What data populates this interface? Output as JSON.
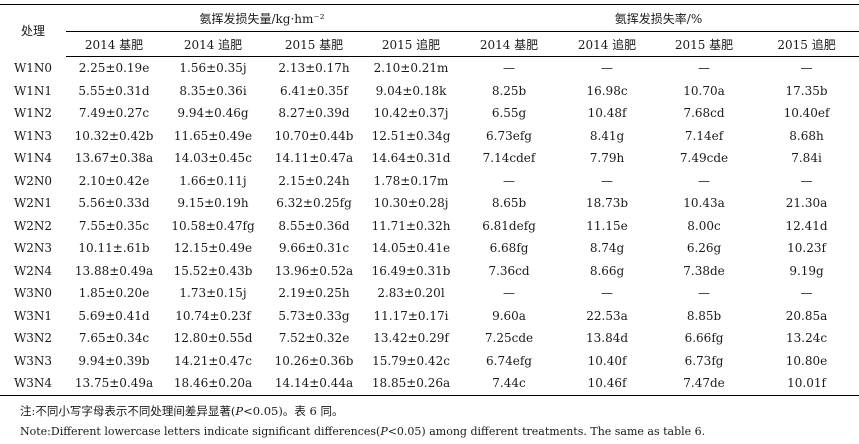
{
  "table": {
    "treatment_header": "处理",
    "group_headers": [
      "氨挥发损失量/kg·hm⁻²",
      "氨挥发损失率/%"
    ],
    "sub_headers": [
      "2014 基肥",
      "2014 追肥",
      "2015 基肥",
      "2015 追肥",
      "2014 基肥",
      "2014 追肥",
      "2015 基肥",
      "2015 追肥"
    ],
    "rows": [
      {
        "label": "W1N0",
        "cells": [
          "2.25±0.19e",
          "1.56±0.35j",
          "2.13±0.17h",
          "2.10±0.21m",
          "—",
          "—",
          "—",
          "—"
        ]
      },
      {
        "label": "W1N1",
        "cells": [
          "5.55±0.31d",
          "8.35±0.36i",
          "6.41±0.35f",
          "9.04±0.18k",
          "8.25b",
          "16.98c",
          "10.70a",
          "17.35b"
        ]
      },
      {
        "label": "W1N2",
        "cells": [
          "7.49±0.27c",
          "9.94±0.46g",
          "8.27±0.39d",
          "10.42±0.37j",
          "6.55g",
          "10.48f",
          "7.68cd",
          "10.40ef"
        ]
      },
      {
        "label": "W1N3",
        "cells": [
          "10.32±0.42b",
          "11.65±0.49e",
          "10.70±0.44b",
          "12.51±0.34g",
          "6.73efg",
          "8.41g",
          "7.14ef",
          "8.68h"
        ]
      },
      {
        "label": "W1N4",
        "cells": [
          "13.67±0.38a",
          "14.03±0.45c",
          "14.11±0.47a",
          "14.64±0.31d",
          "7.14cdef",
          "7.79h",
          "7.49cde",
          "7.84i"
        ]
      },
      {
        "label": "W2N0",
        "cells": [
          "2.10±0.42e",
          "1.66±0.11j",
          "2.15±0.24h",
          "1.78±0.17m",
          "—",
          "—",
          "—",
          "—"
        ]
      },
      {
        "label": "W2N1",
        "cells": [
          "5.56±0.33d",
          "9.15±0.19h",
          "6.32±0.25fg",
          "10.30±0.28j",
          "8.65b",
          "18.73b",
          "10.43a",
          "21.30a"
        ]
      },
      {
        "label": "W2N2",
        "cells": [
          "7.55±0.35c",
          "10.58±0.47fg",
          "8.55±0.36d",
          "11.71±0.32h",
          "6.81defg",
          "11.15e",
          "8.00c",
          "12.41d"
        ]
      },
      {
        "label": "W2N3",
        "cells": [
          "10.11±.61b",
          "12.15±0.49e",
          "9.66±0.31c",
          "14.05±0.41e",
          "6.68fg",
          "8.74g",
          "6.26g",
          "10.23f"
        ]
      },
      {
        "label": "W2N4",
        "cells": [
          "13.88±0.49a",
          "15.52±0.43b",
          "13.96±0.52a",
          "16.49±0.31b",
          "7.36cd",
          "8.66g",
          "7.38de",
          "9.19g"
        ]
      },
      {
        "label": "W3N0",
        "cells": [
          "1.85±0.20e",
          "1.73±0.15j",
          "2.19±0.25h",
          "2.83±0.20l",
          "—",
          "—",
          "—",
          "—"
        ]
      },
      {
        "label": "W3N1",
        "cells": [
          "5.69±0.41d",
          "10.74±0.23f",
          "5.73±0.33g",
          "11.17±0.17i",
          "9.60a",
          "22.53a",
          "8.85b",
          "20.85a"
        ]
      },
      {
        "label": "W3N2",
        "cells": [
          "7.65±0.34c",
          "12.80±0.55d",
          "7.52±0.32e",
          "13.42±0.29f",
          "7.25cde",
          "13.84d",
          "6.66fg",
          "13.24c"
        ]
      },
      {
        "label": "W3N3",
        "cells": [
          "9.94±0.39b",
          "14.21±0.47c",
          "10.26±0.36b",
          "15.79±0.42c",
          "6.74efg",
          "10.40f",
          "6.73fg",
          "10.80e"
        ]
      },
      {
        "label": "W3N4",
        "cells": [
          "13.75±0.49a",
          "18.46±0.20a",
          "14.14±0.44a",
          "18.85±0.26a",
          "7.44c",
          "10.46f",
          "7.47de",
          "10.01f"
        ]
      }
    ]
  },
  "notes": {
    "cn_prefix": "注:不同小写字母表示不同处理间差异显著(",
    "cn_italic": "P",
    "cn_suffix": "<0.05)。表 6 同。",
    "en_prefix": "Note:Different lowercase letters indicate significant differences(",
    "en_italic": "P",
    "en_suffix": "<0.05) among different treatments. The same as table 6."
  }
}
